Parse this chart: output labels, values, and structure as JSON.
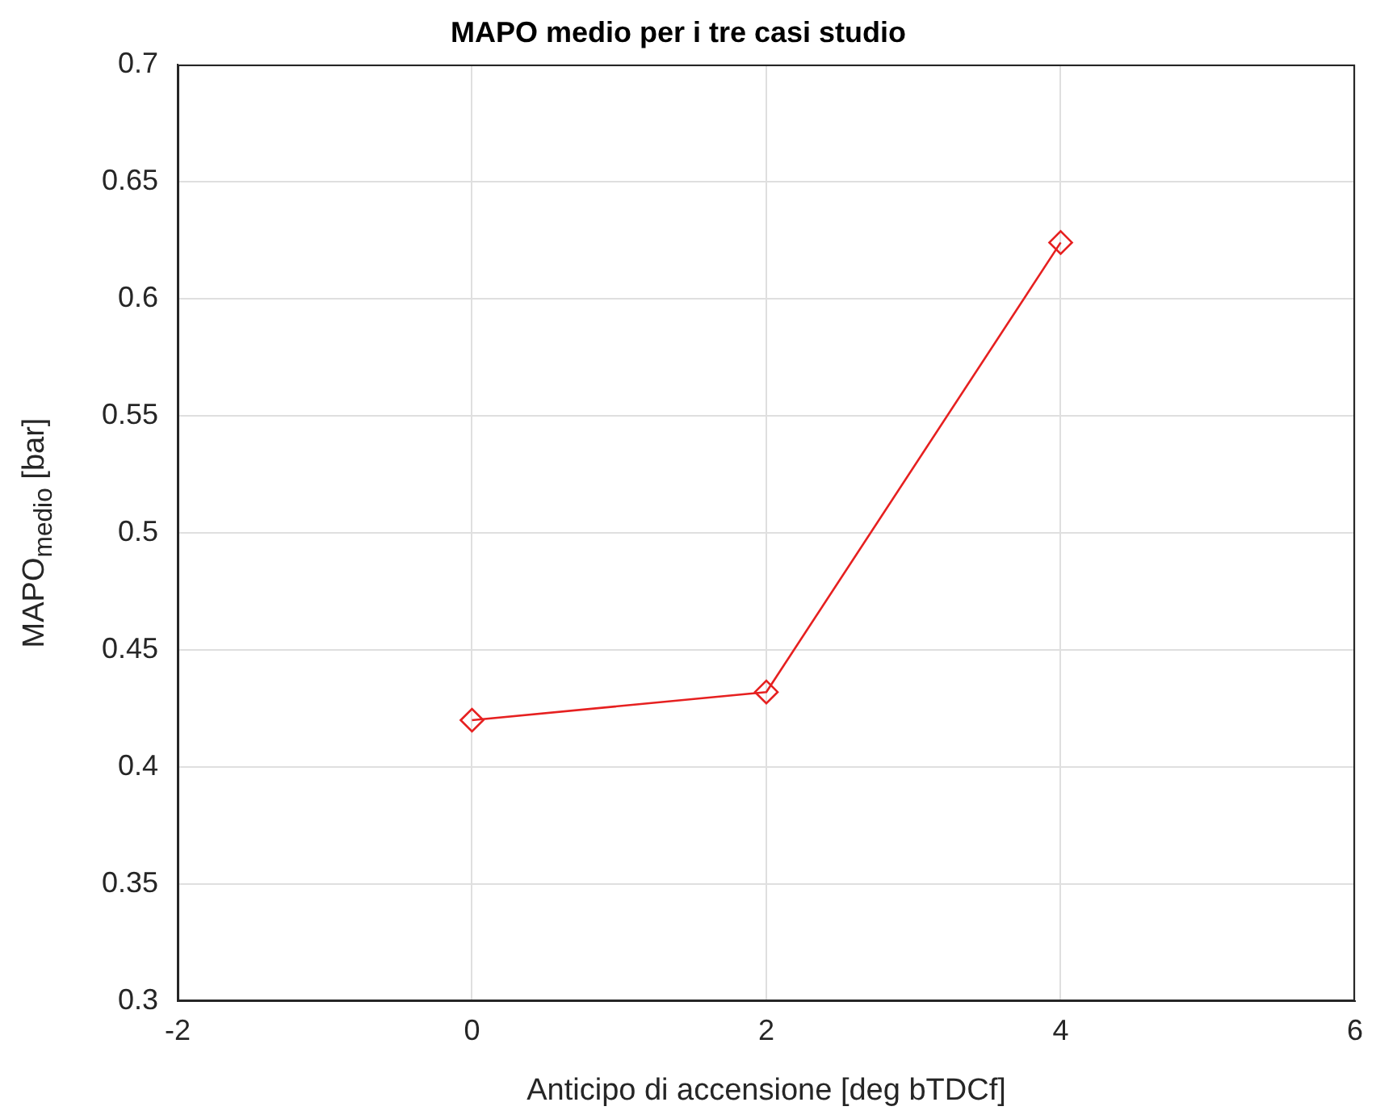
{
  "chart_data": {
    "type": "line",
    "title": "MAPO medio per i tre casi studio",
    "xlabel": "Anticipo di accensione [deg bTDCf]",
    "ylabel": "MAPO$_{medio}$ [bar]",
    "x": [
      0,
      2,
      4
    ],
    "series": [
      {
        "color": "#e62020",
        "values": [
          0.42,
          0.432,
          0.624
        ]
      }
    ],
    "xlim": [
      -2,
      6
    ],
    "xticks": [
      -2,
      0,
      2,
      4,
      6
    ],
    "ylim": [
      0.3,
      0.7
    ],
    "yticks": [
      0.3,
      0.35,
      0.4,
      0.45,
      0.5,
      0.55,
      0.6,
      0.65,
      0.7
    ],
    "grid": true,
    "marker": "diamond",
    "line_style": "solid"
  }
}
